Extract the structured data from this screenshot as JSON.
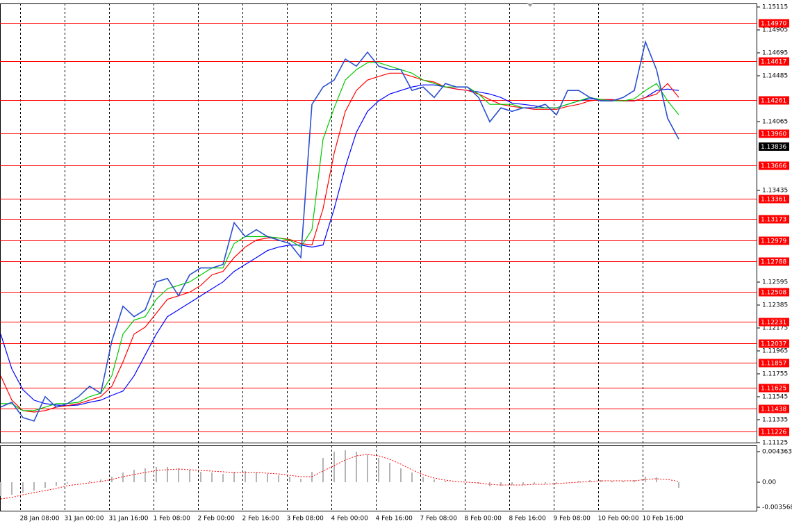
{
  "chart_data": [
    {
      "type": "line",
      "x": [
        0,
        4,
        8,
        12,
        16,
        20,
        24,
        28,
        32,
        36,
        40,
        44,
        48,
        52,
        56,
        60,
        64,
        68,
        72,
        76,
        80,
        84,
        88,
        92,
        96,
        100,
        104,
        108,
        112,
        116,
        120,
        124,
        128,
        132,
        136,
        140,
        144,
        148,
        152,
        156,
        160,
        164,
        168,
        172,
        176,
        180,
        184,
        188,
        192,
        196,
        200,
        204,
        208,
        212,
        216,
        220,
        224,
        228,
        232,
        236,
        240,
        244
      ],
      "xlim": [
        -0.25,
        272.25
      ],
      "ylim": [
        1.11125,
        1.15147
      ],
      "yticks": [
        1.15115,
        1.14905,
        1.14695,
        1.14485,
        1.14065,
        1.13435,
        1.12595,
        1.12385,
        1.12175,
        1.11965,
        1.11755,
        1.11545,
        1.11335,
        1.11125
      ],
      "series": [
        {
          "color": "#0000ff",
          "values": [
            1.12119,
            1.118,
            1.11609,
            1.11514,
            1.11482,
            1.11469,
            1.11463,
            1.11469,
            1.11495,
            1.11514,
            1.11558,
            1.11597,
            1.11737,
            1.11928,
            1.12119,
            1.12279,
            1.12342,
            1.12406,
            1.1247,
            1.12534,
            1.12597,
            1.12693,
            1.12757,
            1.1282,
            1.12884,
            1.12916,
            1.12935,
            1.12935,
            1.12916,
            1.12935,
            1.13267,
            1.13649,
            1.13968,
            1.14159,
            1.14255,
            1.14318,
            1.1435,
            1.14382,
            1.14401,
            1.14401,
            1.14382,
            1.14363,
            1.1435,
            1.14337,
            1.14318,
            1.14286,
            1.14235,
            1.14223,
            1.1421,
            1.14191,
            1.14191,
            1.14223,
            1.14255,
            1.14274,
            1.14267,
            1.14267,
            1.14255,
            1.14255,
            1.14286,
            1.1435,
            1.14363,
            1.1435
          ]
        },
        {
          "color": "#ff0000",
          "values": [
            1.11737,
            1.11514,
            1.11418,
            1.11405,
            1.11418,
            1.1145,
            1.11463,
            1.11482,
            1.11514,
            1.11546,
            1.11641,
            1.11864,
            1.12119,
            1.12183,
            1.1231,
            1.12438,
            1.1247,
            1.12502,
            1.12565,
            1.12661,
            1.12693,
            1.1282,
            1.12916,
            1.1298,
            1.12999,
            1.12999,
            1.12986,
            1.12948,
            1.12935,
            1.13267,
            1.13776,
            1.14159,
            1.1435,
            1.14446,
            1.14478,
            1.14509,
            1.14509,
            1.14478,
            1.14446,
            1.14427,
            1.14382,
            1.14363,
            1.1435,
            1.14318,
            1.14267,
            1.14223,
            1.14204,
            1.14191,
            1.14178,
            1.14178,
            1.14178,
            1.14204,
            1.14223,
            1.14255,
            1.14267,
            1.14267,
            1.14255,
            1.14255,
            1.14286,
            1.14318,
            1.14414,
            1.14286
          ]
        },
        {
          "color": "#00c800",
          "values": [
            1.11482,
            1.11482,
            1.11418,
            1.11418,
            1.1145,
            1.11482,
            1.11482,
            1.11495,
            1.11546,
            1.11577,
            1.11737,
            1.12119,
            1.12247,
            1.12279,
            1.12438,
            1.12534,
            1.12565,
            1.12597,
            1.12661,
            1.12725,
            1.12725,
            1.12948,
            1.13012,
            1.13012,
            1.13012,
            1.12999,
            1.1298,
            1.12916,
            1.13075,
            1.13904,
            1.14191,
            1.14446,
            1.14541,
            1.14605,
            1.14605,
            1.14573,
            1.14541,
            1.14509,
            1.14446,
            1.14414,
            1.14382,
            1.14382,
            1.14382,
            1.14318,
            1.14223,
            1.14223,
            1.14223,
            1.14191,
            1.14191,
            1.14191,
            1.14191,
            1.14223,
            1.14255,
            1.14286,
            1.14267,
            1.14255,
            1.14255,
            1.14274,
            1.1435,
            1.14414,
            1.14255,
            1.14127
          ]
        },
        {
          "color": "#2a4fd0",
          "values": [
            1.1145,
            1.11495,
            1.11354,
            1.11323,
            1.11546,
            1.1145,
            1.11482,
            1.11546,
            1.11641,
            1.11577,
            1.12056,
            1.12374,
            1.12279,
            1.12342,
            1.12597,
            1.12629,
            1.1247,
            1.12661,
            1.12725,
            1.12725,
            1.12757,
            1.13139,
            1.13012,
            1.13075,
            1.13012,
            1.1298,
            1.12948,
            1.1282,
            1.14223,
            1.14382,
            1.14446,
            1.14637,
            1.14573,
            1.14701,
            1.14573,
            1.14541,
            1.14541,
            1.1435,
            1.14382,
            1.14286,
            1.14414,
            1.14382,
            1.14382,
            1.14286,
            1.14063,
            1.14191,
            1.14159,
            1.14191,
            1.14191,
            1.14223,
            1.14127,
            1.1435,
            1.1435,
            1.14286,
            1.14255,
            1.14255,
            1.14286,
            1.1435,
            1.14796,
            1.14541,
            1.14095,
            1.13904
          ]
        }
      ],
      "levels": [
        {
          "value": 1.1497,
          "label": "1.14970"
        },
        1.14617,
        1.14261,
        {
          "value": 1.1396,
          "label": "1.13960"
        },
        1.13666,
        1.13361,
        1.13173,
        1.12979,
        1.12788,
        1.12508,
        1.12231,
        1.12037,
        1.11857,
        1.11625,
        1.11438,
        1.11226
      ],
      "level_color": "#ff0000",
      "last_price": 1.13836
    },
    {
      "type": "macd",
      "x": [
        0,
        4,
        8,
        12,
        16,
        20,
        24,
        28,
        32,
        36,
        40,
        44,
        48,
        52,
        56,
        60,
        64,
        68,
        72,
        76,
        80,
        84,
        88,
        92,
        96,
        100,
        104,
        108,
        112,
        116,
        120,
        124,
        128,
        132,
        136,
        140,
        144,
        148,
        152,
        156,
        160,
        164,
        168,
        172,
        176,
        180,
        184,
        188,
        192,
        196,
        200,
        204,
        208,
        212,
        216,
        220,
        224,
        228,
        232,
        236,
        240,
        244
      ],
      "xlim": [
        -0.25,
        272.25
      ],
      "ylim": [
        -0.004064,
        0.005255
      ],
      "yticks": [
        0.004363,
        {
          "value": 0,
          "label": "0.00"
        },
        -0.003568
      ],
      "xticks": [
        {
          "value": 7,
          "label": "28 Jan 08:00"
        },
        {
          "value": 23,
          "label": "31 Jan 00:00"
        },
        {
          "value": 39,
          "label": "31 Jan 16:00"
        },
        {
          "value": 55,
          "label": "1 Feb 08:00"
        },
        {
          "value": 71,
          "label": "2 Feb 00:00"
        },
        {
          "value": 87,
          "label": "2 Feb 16:00"
        },
        {
          "value": 103,
          "label": "3 Feb 08:00"
        },
        {
          "value": 119,
          "label": "4 Feb 00:00"
        },
        {
          "value": 135,
          "label": "4 Feb 16:00"
        },
        {
          "value": 151,
          "label": "7 Feb 08:00"
        },
        {
          "value": 167,
          "label": "8 Feb 00:00"
        },
        {
          "value": 183,
          "label": "8 Feb 16:00"
        },
        {
          "value": 199,
          "label": "9 Feb 08:00"
        },
        {
          "value": 215,
          "label": "10 Feb 00:00"
        },
        {
          "value": 231,
          "label": "10 Feb 16:00"
        }
      ],
      "series": [
        {
          "style": "histogram",
          "color": "#b4b4b4",
          "values": [
            -0.001983,
            -0.001785,
            -0.001487,
            -0.00119,
            -0.000793,
            -0.000496,
            -0.000198,
            0,
            0.000198,
            0.000397,
            0.000793,
            0.001388,
            0.001785,
            0.001983,
            0.002182,
            0.002182,
            0.001983,
            0.001785,
            0.001487,
            0.001388,
            0.00119,
            0.001487,
            0.001587,
            0.001388,
            0.00119,
            0.000992,
            0.000793,
            0.000496,
            0.001487,
            0.003471,
            0.004363,
            0.004561,
            0.004363,
            0.003966,
            0.003471,
            0.002776,
            0.001983,
            0.001388,
            0.000793,
            0.000397,
            0.000198,
            0,
            0,
            -0.000198,
            -0.000595,
            -0.000496,
            -0.000397,
            -0.000397,
            -0.000297,
            -0.000198,
            -0.000198,
            0,
            0.000198,
            0.000297,
            0.000297,
            0.000198,
            0.000198,
            0.000297,
            0.000793,
            0.000694,
            0,
            -0.000793
          ]
        },
        {
          "style": "dotted",
          "color": "#ff0000",
          "values": [
            -0.00238,
            -0.002182,
            -0.001785,
            -0.001487,
            -0.00119,
            -0.000892,
            -0.000496,
            -0.000297,
            -9.9e-05,
            9.9e-05,
            0.000397,
            0.000793,
            0.001091,
            0.001388,
            0.001686,
            0.001785,
            0.001884,
            0.001785,
            0.001686,
            0.001587,
            0.001487,
            0.001388,
            0.001388,
            0.001388,
            0.001289,
            0.00119,
            0.000992,
            0.000793,
            0.000793,
            0.001587,
            0.00238,
            0.003173,
            0.003768,
            0.003966,
            0.003768,
            0.003272,
            0.002578,
            0.001785,
            0.001091,
            0.000595,
            0.000297,
            9.9e-05,
            0,
            -9.9e-05,
            -0.000297,
            -0.000397,
            -0.000397,
            -0.000397,
            -0.000297,
            -0.000297,
            -0.000198,
            -9.9e-05,
            0,
            9.9e-05,
            0.000198,
            0.000198,
            0.000198,
            0.000198,
            0.000397,
            0.000496,
            0.000397,
            9.9e-05
          ]
        }
      ]
    }
  ]
}
